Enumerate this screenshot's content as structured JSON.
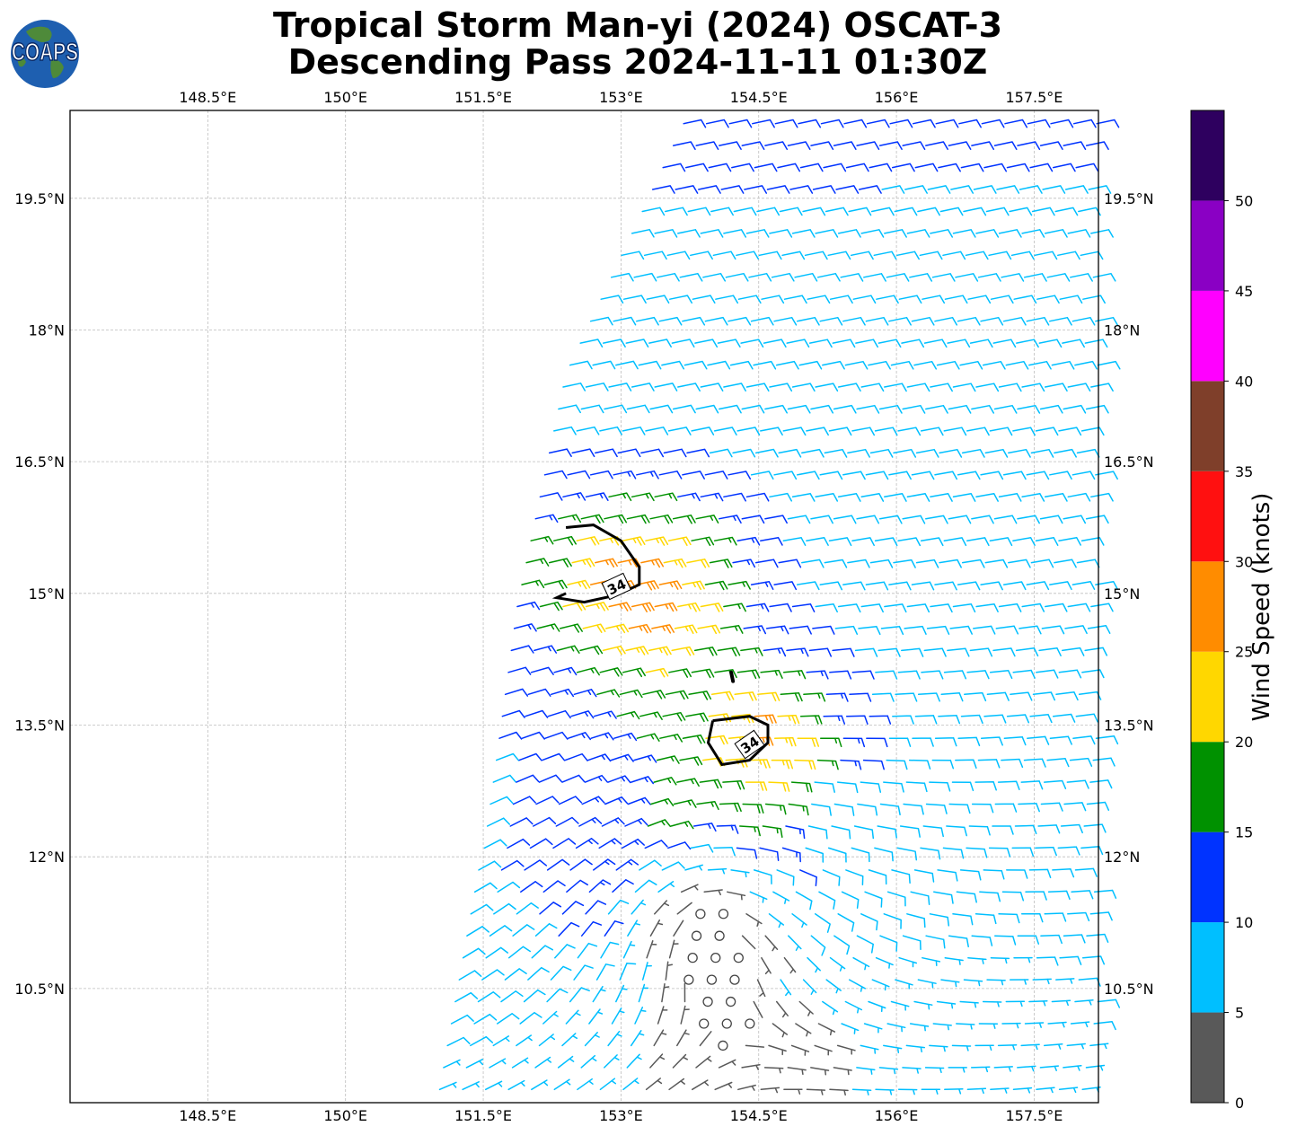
{
  "title": {
    "line1": "Tropical Storm Man-yi (2024) OSCAT-3",
    "line2": "Descending Pass 2024-11-11 01:30Z"
  },
  "logo": {
    "text": "COAPS",
    "icon": "globe-icon"
  },
  "map": {
    "lon_range": [
      147,
      158.2
    ],
    "lat_range": [
      9.2,
      20.5
    ],
    "lon_ticks": [
      "148.5°E",
      "150°E",
      "151.5°E",
      "153°E",
      "154.5°E",
      "156°E",
      "157.5°E"
    ],
    "lon_tick_values": [
      148.5,
      150,
      151.5,
      153,
      154.5,
      156,
      157.5
    ],
    "lat_ticks": [
      "19.5°N",
      "18°N",
      "16.5°N",
      "15°N",
      "13.5°N",
      "12°N",
      "10.5°N"
    ],
    "lat_tick_values": [
      19.5,
      18,
      16.5,
      15,
      13.5,
      12,
      10.5
    ],
    "gridlines": true,
    "contour_label": "34",
    "storm_center": [
      153.9,
      11.3
    ]
  },
  "colorbar": {
    "label": "Wind Speed (knots)",
    "ticks": [
      "0",
      "5",
      "10",
      "15",
      "20",
      "25",
      "30",
      "35",
      "40",
      "45",
      "50"
    ],
    "bins": [
      {
        "min": 0,
        "max": 5,
        "color": "#595959"
      },
      {
        "min": 5,
        "max": 10,
        "color": "#00BFFF"
      },
      {
        "min": 10,
        "max": 15,
        "color": "#0033FF"
      },
      {
        "min": 15,
        "max": 20,
        "color": "#009100"
      },
      {
        "min": 20,
        "max": 25,
        "color": "#FFD700"
      },
      {
        "min": 25,
        "max": 30,
        "color": "#FF8C00"
      },
      {
        "min": 30,
        "max": 35,
        "color": "#FF1010"
      },
      {
        "min": 35,
        "max": 40,
        "color": "#7F3F2A"
      },
      {
        "min": 40,
        "max": 45,
        "color": "#FF00FF"
      },
      {
        "min": 45,
        "max": 50,
        "color": "#8A00C4"
      },
      {
        "min": 50,
        "max": 55,
        "color": "#2E005F"
      }
    ]
  }
}
